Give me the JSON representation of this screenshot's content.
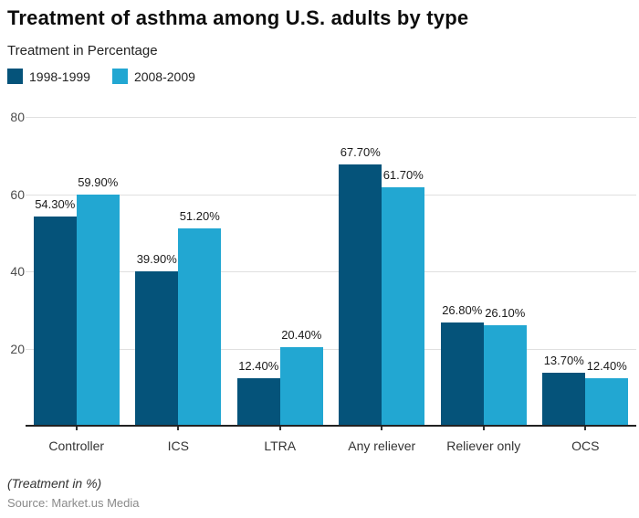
{
  "header": {
    "title": "Treatment of asthma among U.S. adults by type",
    "subtitle": "Treatment in Percentage"
  },
  "legend": [
    {
      "label": "1998-1999",
      "color": "#05537a"
    },
    {
      "label": "2008-2009",
      "color": "#22a7d2"
    }
  ],
  "chart_data": {
    "type": "bar",
    "title": "Treatment of asthma among U.S. adults by type",
    "subtitle": "Treatment in Percentage",
    "categories": [
      "Controller",
      "ICS",
      "LTRA",
      "Any reliever",
      "Reliever only",
      "OCS"
    ],
    "series": [
      {
        "name": "1998-1999",
        "color": "#05537a",
        "values": [
          54.3,
          39.9,
          12.4,
          67.7,
          26.8,
          13.7
        ],
        "labels": [
          "54.30%",
          "39.90%",
          "12.40%",
          "67.70%",
          "26.80%",
          "13.70%"
        ]
      },
      {
        "name": "2008-2009",
        "color": "#22a7d2",
        "values": [
          59.9,
          51.2,
          20.4,
          61.7,
          26.1,
          12.4
        ],
        "labels": [
          "59.90%",
          "51.20%",
          "20.40%",
          "61.70%",
          "26.10%",
          "12.40%"
        ]
      }
    ],
    "ylim": [
      0,
      80
    ],
    "yticks": [
      20,
      40,
      60,
      80
    ],
    "grid": true,
    "legend_position": "top-left",
    "gridline_color": "#e0e0e0",
    "axis_color": "#222222"
  },
  "footer": {
    "note": "(Treatment in %)",
    "source": "Source: Market.us Media"
  }
}
